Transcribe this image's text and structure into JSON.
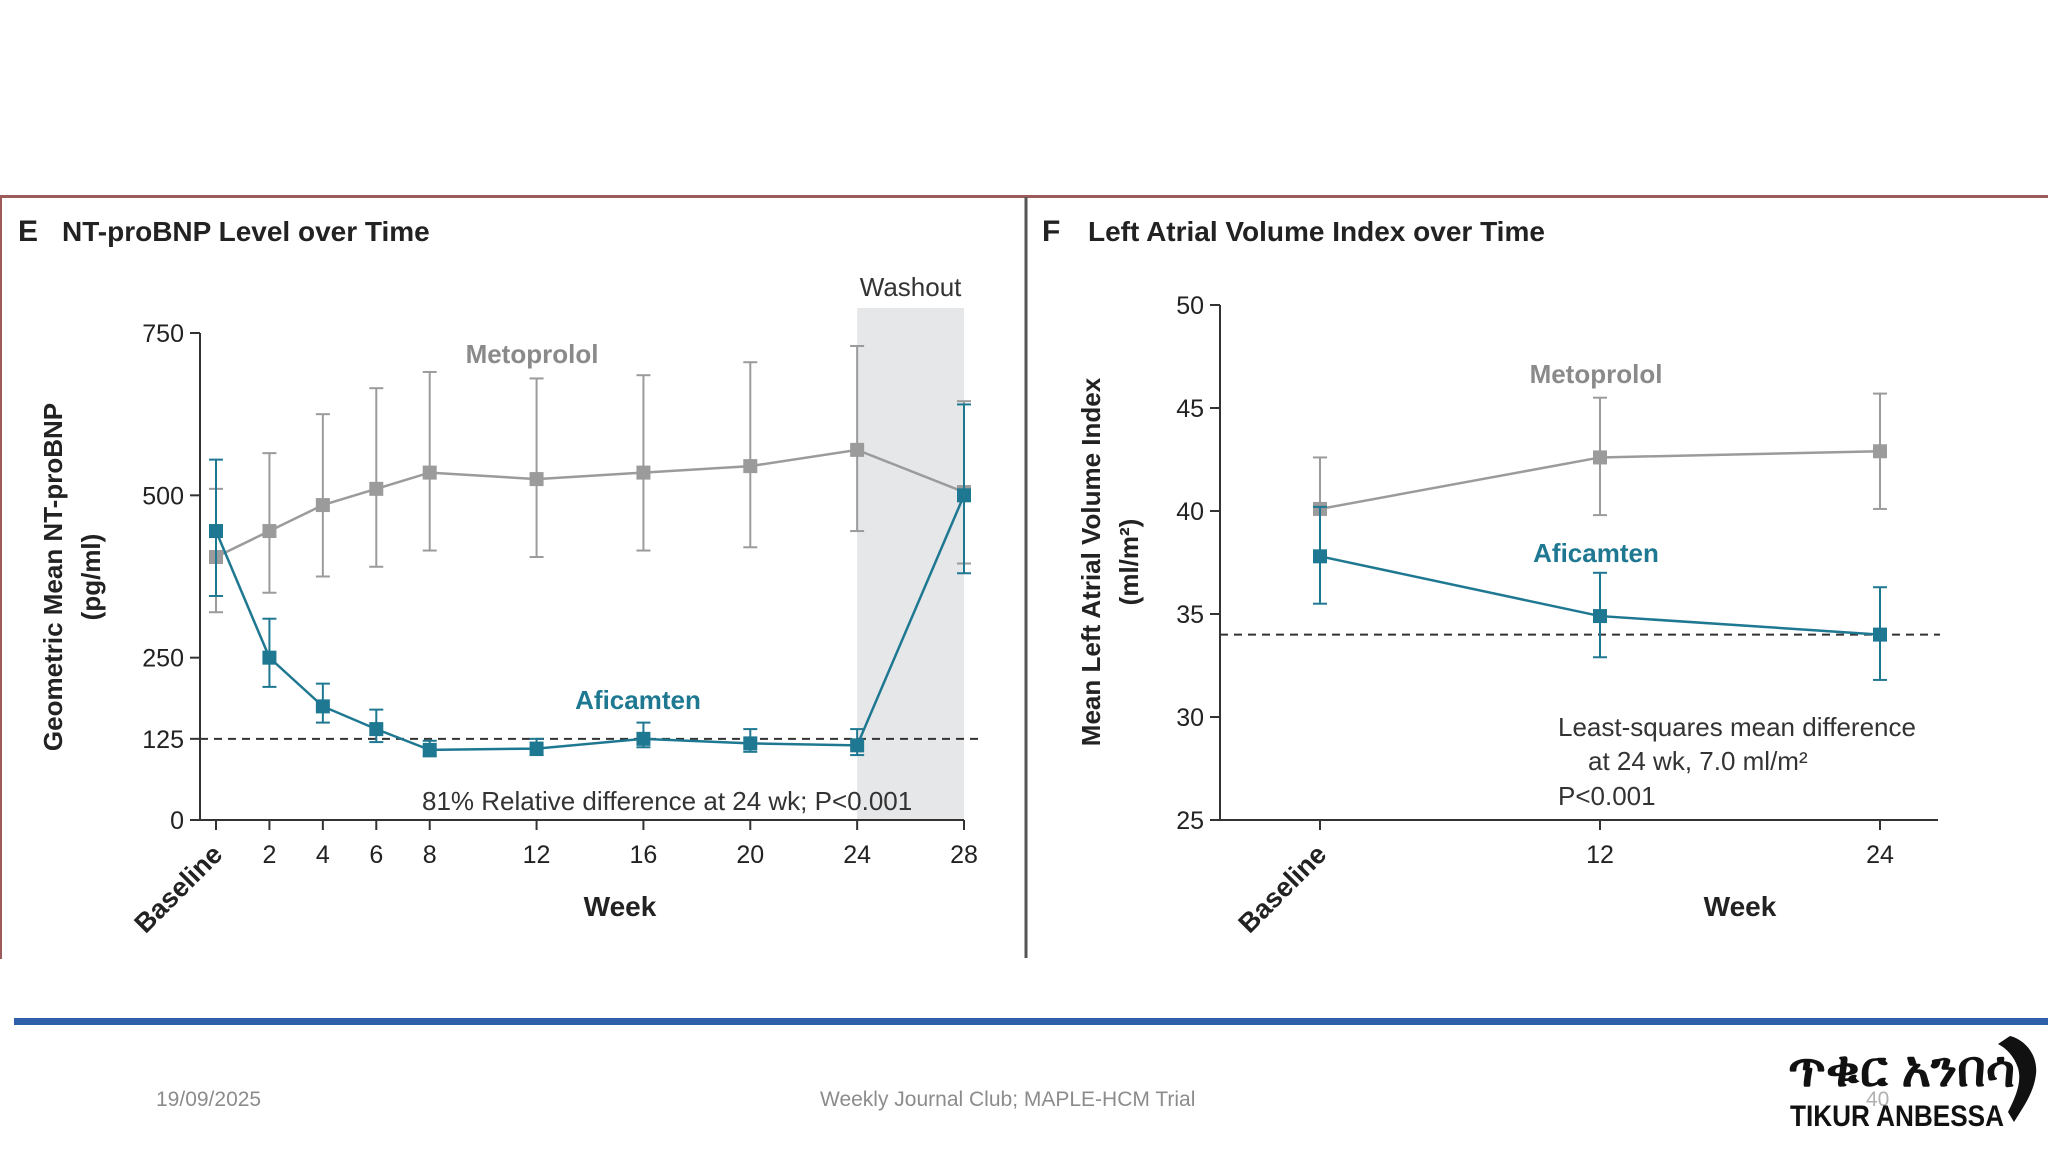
{
  "footer": {
    "date": "19/09/2025",
    "title": "Weekly Journal Club; MAPLE-HCM Trial",
    "page": "40"
  },
  "logo": {
    "glyphs": "ጥቁር አንበሳ",
    "name": "TIKUR ANBESSA"
  },
  "colors": {
    "metoprolol": "#9b9b9b",
    "aficamten": "#1f7891",
    "frame": "#9c5a5a",
    "band": "#2e5fa8",
    "washout": "#e6e7e9"
  },
  "chart_data": [
    {
      "panel": "E",
      "type": "line",
      "title": "NT-proBNP Level over Time",
      "xlabel": "Week",
      "ylabel": "Geometric Mean NT-proBNP",
      "ylabel_unit": "(pg/ml)",
      "x": [
        0,
        2,
        4,
        6,
        8,
        12,
        16,
        20,
        24,
        28
      ],
      "x_tick_labels": [
        "Baseline",
        "2",
        "4",
        "6",
        "8",
        "12",
        "16",
        "20",
        "24",
        "28"
      ],
      "xlim": [
        0,
        28
      ],
      "y_ticks": [
        0,
        125,
        250,
        500,
        750
      ],
      "y_tick_labels": [
        "0",
        "125",
        "250",
        "500",
        "750"
      ],
      "ylim": [
        0,
        750
      ],
      "series": [
        {
          "name": "Metoprolol",
          "color": "#9b9b9b",
          "values": [
            405,
            445,
            485,
            510,
            535,
            525,
            535,
            545,
            570,
            505
          ],
          "err_low": [
            320,
            350,
            375,
            390,
            415,
            405,
            415,
            420,
            445,
            395
          ],
          "err_high": [
            510,
            565,
            625,
            665,
            690,
            680,
            685,
            705,
            730,
            645
          ]
        },
        {
          "name": "Aficamten",
          "color": "#1f7891",
          "values": [
            445,
            250,
            175,
            140,
            108,
            110,
            125,
            118,
            115,
            500
          ],
          "err_low": [
            345,
            205,
            150,
            120,
            98,
            100,
            112,
            105,
            100,
            380
          ],
          "err_high": [
            555,
            310,
            210,
            170,
            122,
            125,
            150,
            140,
            140,
            640
          ]
        }
      ],
      "reference_line": 125,
      "shaded_region": {
        "label": "Washout",
        "x_start": 24,
        "x_end": 28
      },
      "annotation": "81% Relative difference at 24 wk; P<0.001",
      "grid": false,
      "legend": "inline labels"
    },
    {
      "panel": "F",
      "type": "line",
      "title": "Left Atrial Volume Index over Time",
      "xlabel": "Week",
      "ylabel": "Mean Left Atrial Volume Index",
      "ylabel_unit": "(ml/m²)",
      "x": [
        0,
        12,
        24
      ],
      "x_tick_labels": [
        "Baseline",
        "12",
        "24"
      ],
      "xlim": [
        0,
        24
      ],
      "y_ticks": [
        25,
        30,
        35,
        40,
        45,
        50
      ],
      "y_tick_labels": [
        "25",
        "30",
        "35",
        "40",
        "45",
        "50"
      ],
      "ylim": [
        25,
        50
      ],
      "series": [
        {
          "name": "Metoprolol",
          "color": "#9b9b9b",
          "values": [
            40.1,
            42.6,
            42.9
          ],
          "err_low": [
            37.6,
            39.8,
            40.1
          ],
          "err_high": [
            42.6,
            45.5,
            45.7
          ]
        },
        {
          "name": "Aficamten",
          "color": "#1f7891",
          "values": [
            37.8,
            34.9,
            34.0
          ],
          "err_low": [
            35.5,
            32.9,
            31.8
          ],
          "err_high": [
            40.2,
            37.0,
            36.3
          ]
        }
      ],
      "reference_line": 34.0,
      "annotation_lines": [
        "Least-squares mean difference",
        "at 24 wk, 7.0 ml/m²",
        "P<0.001"
      ],
      "grid": false,
      "legend": "inline labels"
    }
  ]
}
